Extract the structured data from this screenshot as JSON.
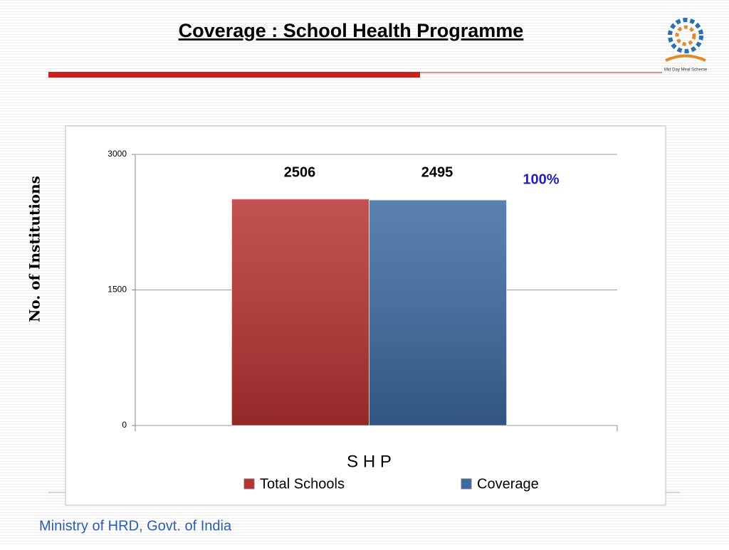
{
  "page_title": "Coverage : School Health Programme",
  "footer": "Ministry of HRD, Govt. of India",
  "logo_text": "Mid Day Meal Scheme",
  "chart_data": {
    "type": "bar",
    "categories": [
      "S H P"
    ],
    "series": [
      {
        "name": "Total Schools",
        "color": "#b83232",
        "values": [
          2506
        ]
      },
      {
        "name": "Coverage",
        "color": "#3d6aa0",
        "values": [
          2495
        ]
      }
    ],
    "y_label": "No. of Institutions",
    "annotation": "100%",
    "ylim": [
      0,
      3000
    ],
    "yticks": [
      0,
      1500,
      3000
    ],
    "grid": true,
    "legend": "bottom"
  }
}
